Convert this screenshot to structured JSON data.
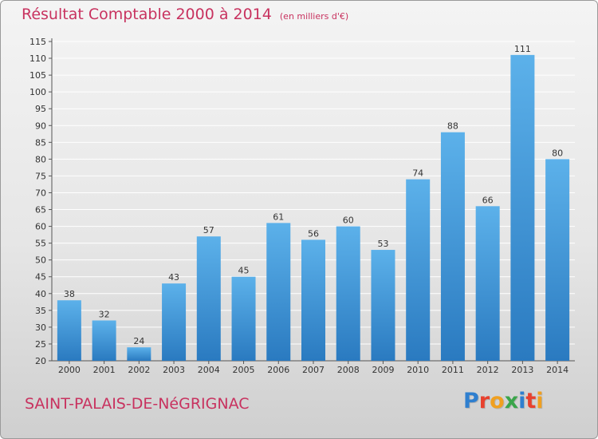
{
  "title": "Résultat Comptable 2000 à 2014",
  "unit": "(en milliers d'€)",
  "commune": "SAINT-PALAIS-DE-NéGRIGNAC",
  "logo": {
    "text": "Proxiti",
    "colors": [
      "#2f7fcf",
      "#e8412e",
      "#f0a020",
      "#3aa54a",
      "#2f7fcf",
      "#e8412e",
      "#f0a020"
    ]
  },
  "colors": {
    "title": "#c8325f",
    "bar_light": "#5cb1ea",
    "bar_dark": "#2a7ac0",
    "grid": "#ffffff"
  },
  "chart_data": {
    "type": "bar",
    "categories": [
      "2000",
      "2001",
      "2002",
      "2003",
      "2004",
      "2005",
      "2006",
      "2007",
      "2008",
      "2009",
      "2010",
      "2011",
      "2012",
      "2013",
      "2014"
    ],
    "values": [
      38,
      32,
      24,
      43,
      57,
      45,
      61,
      56,
      60,
      53,
      74,
      88,
      66,
      111,
      80
    ],
    "ylim": [
      20,
      115
    ],
    "yticks": [
      20,
      25,
      30,
      35,
      40,
      45,
      50,
      55,
      60,
      65,
      70,
      75,
      80,
      85,
      90,
      95,
      100,
      105,
      110,
      115
    ],
    "grid": true
  }
}
